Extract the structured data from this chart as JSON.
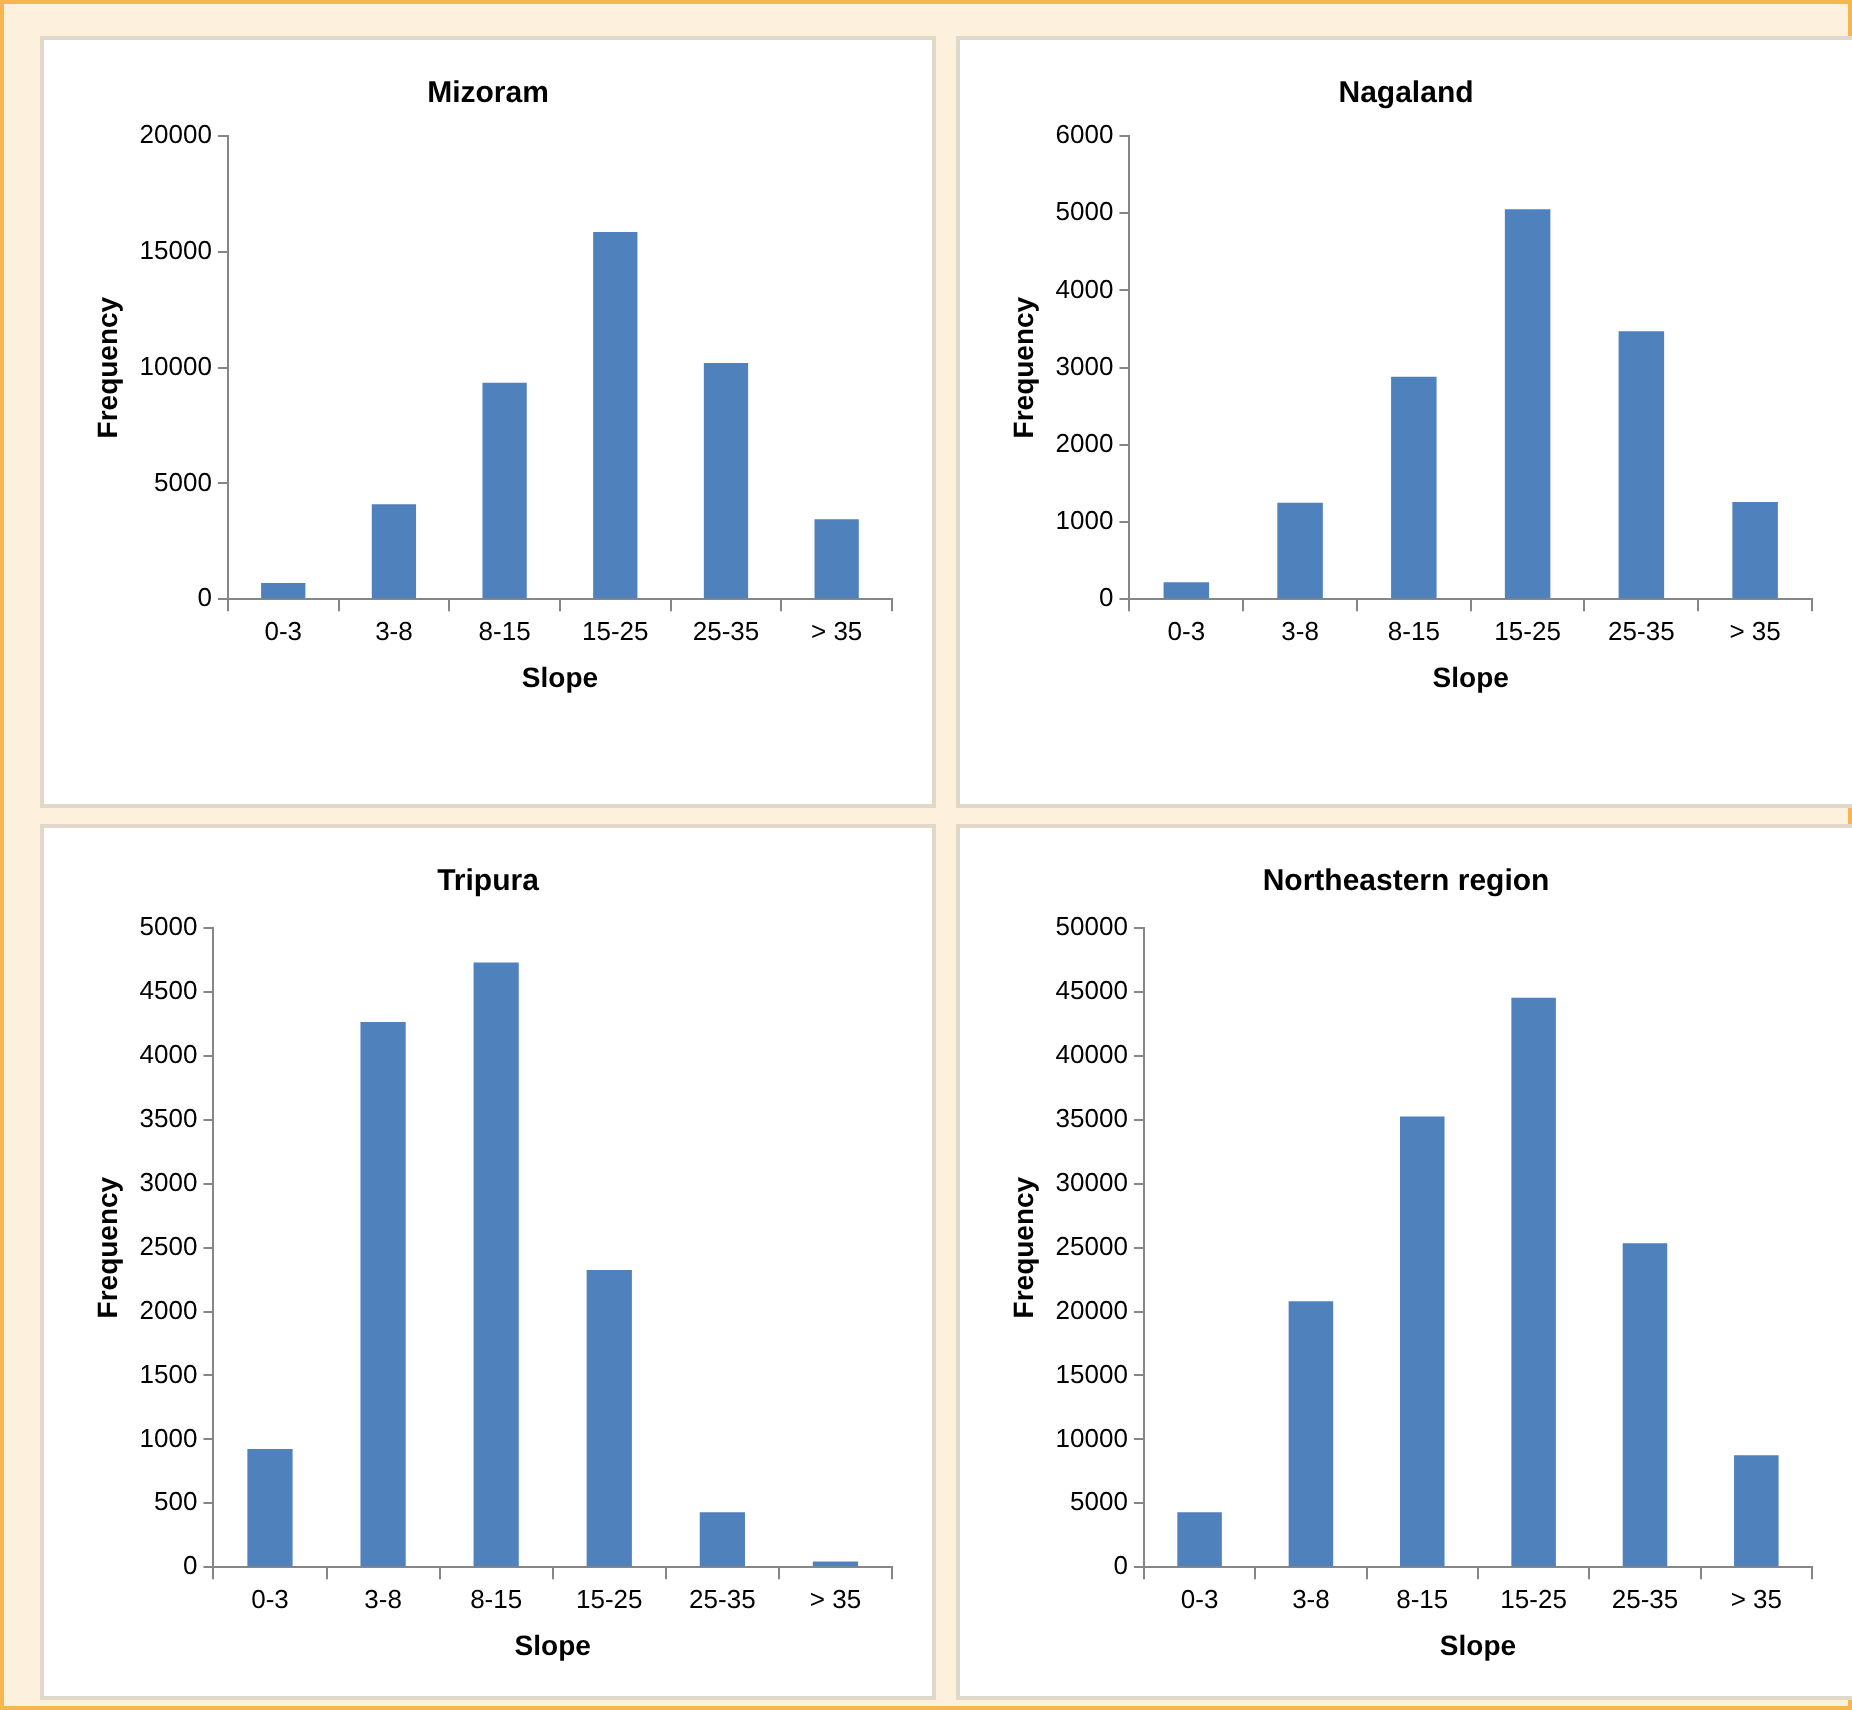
{
  "chart_data": [
    {
      "type": "bar",
      "title": "Mizoram",
      "xlabel": "Slope",
      "ylabel": "Frequency",
      "categories": [
        "0-3",
        "3-8",
        "8-15",
        "15-25",
        "25-35",
        "> 35"
      ],
      "values": [
        700,
        4100,
        9350,
        15850,
        10200,
        3450
      ],
      "color": "#4f81bd",
      "ylim": [
        0,
        20000
      ],
      "yticks": [
        0,
        5000,
        10000,
        15000,
        20000
      ],
      "grid": false,
      "legend": false
    },
    {
      "type": "bar",
      "title": "Nagaland",
      "xlabel": "Slope",
      "ylabel": "Frequency",
      "categories": [
        "0-3",
        "3-8",
        "8-15",
        "15-25",
        "25-35",
        "> 35"
      ],
      "values": [
        220,
        1250,
        2880,
        5050,
        3470,
        1260
      ],
      "color": "#4f81bd",
      "ylim": [
        0,
        6000
      ],
      "yticks": [
        0,
        1000,
        2000,
        3000,
        4000,
        5000,
        6000
      ],
      "grid": false,
      "legend": false
    },
    {
      "type": "bar",
      "title": "Tripura",
      "xlabel": "Slope",
      "ylabel": "Frequency",
      "categories": [
        "0-3",
        "3-8",
        "8-15",
        "15-25",
        "25-35",
        "> 35"
      ],
      "values": [
        925,
        4265,
        4730,
        2325,
        430,
        45
      ],
      "color": "#4f81bd",
      "ylim": [
        0,
        5000
      ],
      "yticks": [
        0,
        500,
        1000,
        1500,
        2000,
        2500,
        3000,
        3500,
        4000,
        4500,
        5000
      ],
      "grid": false,
      "legend": false
    },
    {
      "type": "bar",
      "title": "Northeastern region",
      "xlabel": "Slope",
      "ylabel": "Frequency",
      "categories": [
        "0-3",
        "3-8",
        "8-15",
        "15-25",
        "25-35",
        "> 35"
      ],
      "values": [
        4300,
        20800,
        35250,
        44550,
        25350,
        8750
      ],
      "color": "#4f81bd",
      "ylim": [
        0,
        50000
      ],
      "yticks": [
        0,
        5000,
        10000,
        15000,
        20000,
        25000,
        30000,
        35000,
        40000,
        45000,
        50000
      ],
      "grid": false,
      "legend": false
    }
  ]
}
